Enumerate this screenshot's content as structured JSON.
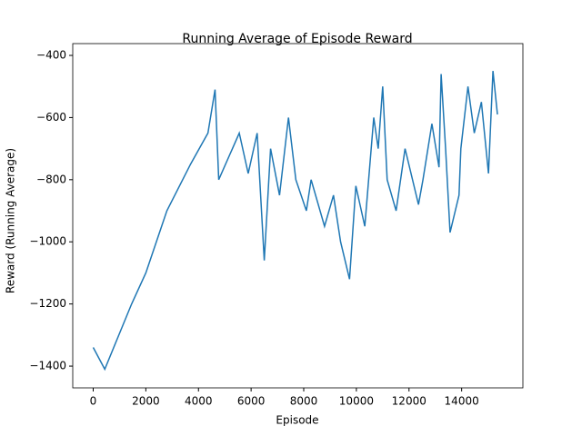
{
  "chart_data": {
    "type": "line",
    "title": "Running Average of Episode Reward",
    "x_label": "Episode",
    "y_label": "Reward (Running Average)",
    "x": [
      0,
      440,
      1460,
      2000,
      2800,
      3700,
      4360,
      4630,
      4770,
      5550,
      5890,
      6230,
      6500,
      6740,
      7080,
      7420,
      7700,
      8100,
      8280,
      8790,
      9130,
      9400,
      9740,
      9980,
      10320,
      10660,
      10830,
      11000,
      11170,
      11510,
      11850,
      12360,
      12530,
      12870,
      13140,
      13220,
      13390,
      13560,
      13900,
      13970,
      14240,
      14480,
      14750,
      15020,
      15190,
      15360
    ],
    "series": [
      {
        "name": "Reward",
        "color": "#1f77b4",
        "values": [
          -1340,
          -1410,
          -1200,
          -1100,
          -900,
          -750,
          -650,
          -510,
          -800,
          -650,
          -780,
          -650,
          -1060,
          -700,
          -850,
          -600,
          -800,
          -900,
          -800,
          -950,
          -850,
          -1000,
          -1120,
          -820,
          -950,
          -600,
          -700,
          -500,
          -800,
          -900,
          -700,
          -880,
          -800,
          -620,
          -760,
          -460,
          -700,
          -970,
          -850,
          -700,
          -500,
          -650,
          -550,
          -780,
          -450,
          -590
        ]
      }
    ],
    "xlim": [
      -777,
      16327
    ],
    "ylim": [
      -1470,
      -362
    ],
    "xticks": [
      0,
      2000,
      4000,
      6000,
      8000,
      10000,
      12000,
      14000
    ],
    "yticks": [
      {
        "value": -1400,
        "label": "−1400"
      },
      {
        "value": -1200,
        "label": "−1200"
      },
      {
        "value": -1000,
        "label": "−1000"
      },
      {
        "value": -800,
        "label": "−800"
      },
      {
        "value": -600,
        "label": "−600"
      },
      {
        "value": -400,
        "label": "−400"
      }
    ]
  }
}
